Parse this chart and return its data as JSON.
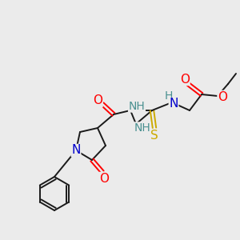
{
  "bg_color": "#ebebeb",
  "bond_color": "#1a1a1a",
  "atom_colors": {
    "O": "#ff0000",
    "N": "#0000cc",
    "S": "#ccaa00",
    "H": "#4a9090",
    "C": "#1a1a1a"
  },
  "font_size": 10,
  "fig_size": [
    3.0,
    3.0
  ],
  "dpi": 100,
  "lw": 1.4
}
